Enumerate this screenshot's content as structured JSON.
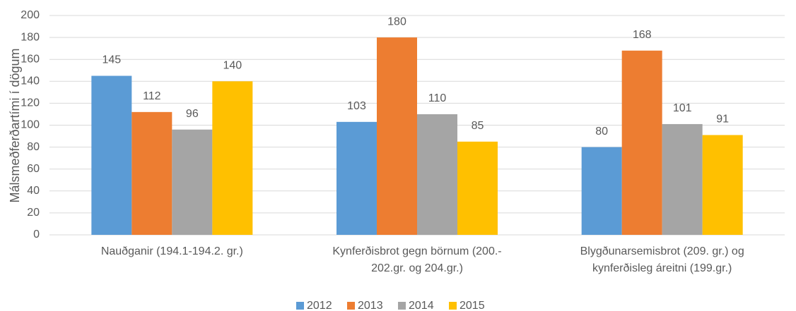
{
  "chart_data": {
    "type": "bar",
    "y_label": "Málsmeðferðartími í dögum",
    "categories": [
      "Nauðganir  (194.1-194.2. gr.)",
      "Kynferðisbrot gegn börnum (200.-\n202.gr. og 204.gr.)",
      "Blygðunarsemisbrot (209. gr.) og\nkynferðisleg áreitni (199.gr.)"
    ],
    "series": [
      {
        "name": "2012",
        "color": "#5b9bd5",
        "values": [
          145,
          103,
          80
        ]
      },
      {
        "name": "2013",
        "color": "#ed7d31",
        "values": [
          112,
          180,
          168
        ]
      },
      {
        "name": "2014",
        "color": "#a5a5a5",
        "values": [
          96,
          110,
          101
        ]
      },
      {
        "name": "2015",
        "color": "#ffc000",
        "values": [
          140,
          85,
          91
        ]
      }
    ],
    "ylim": [
      0,
      200
    ],
    "yticks": [
      0,
      20,
      40,
      60,
      80,
      100,
      120,
      140,
      160,
      180,
      200
    ],
    "grid": true,
    "legend": "bottom"
  }
}
